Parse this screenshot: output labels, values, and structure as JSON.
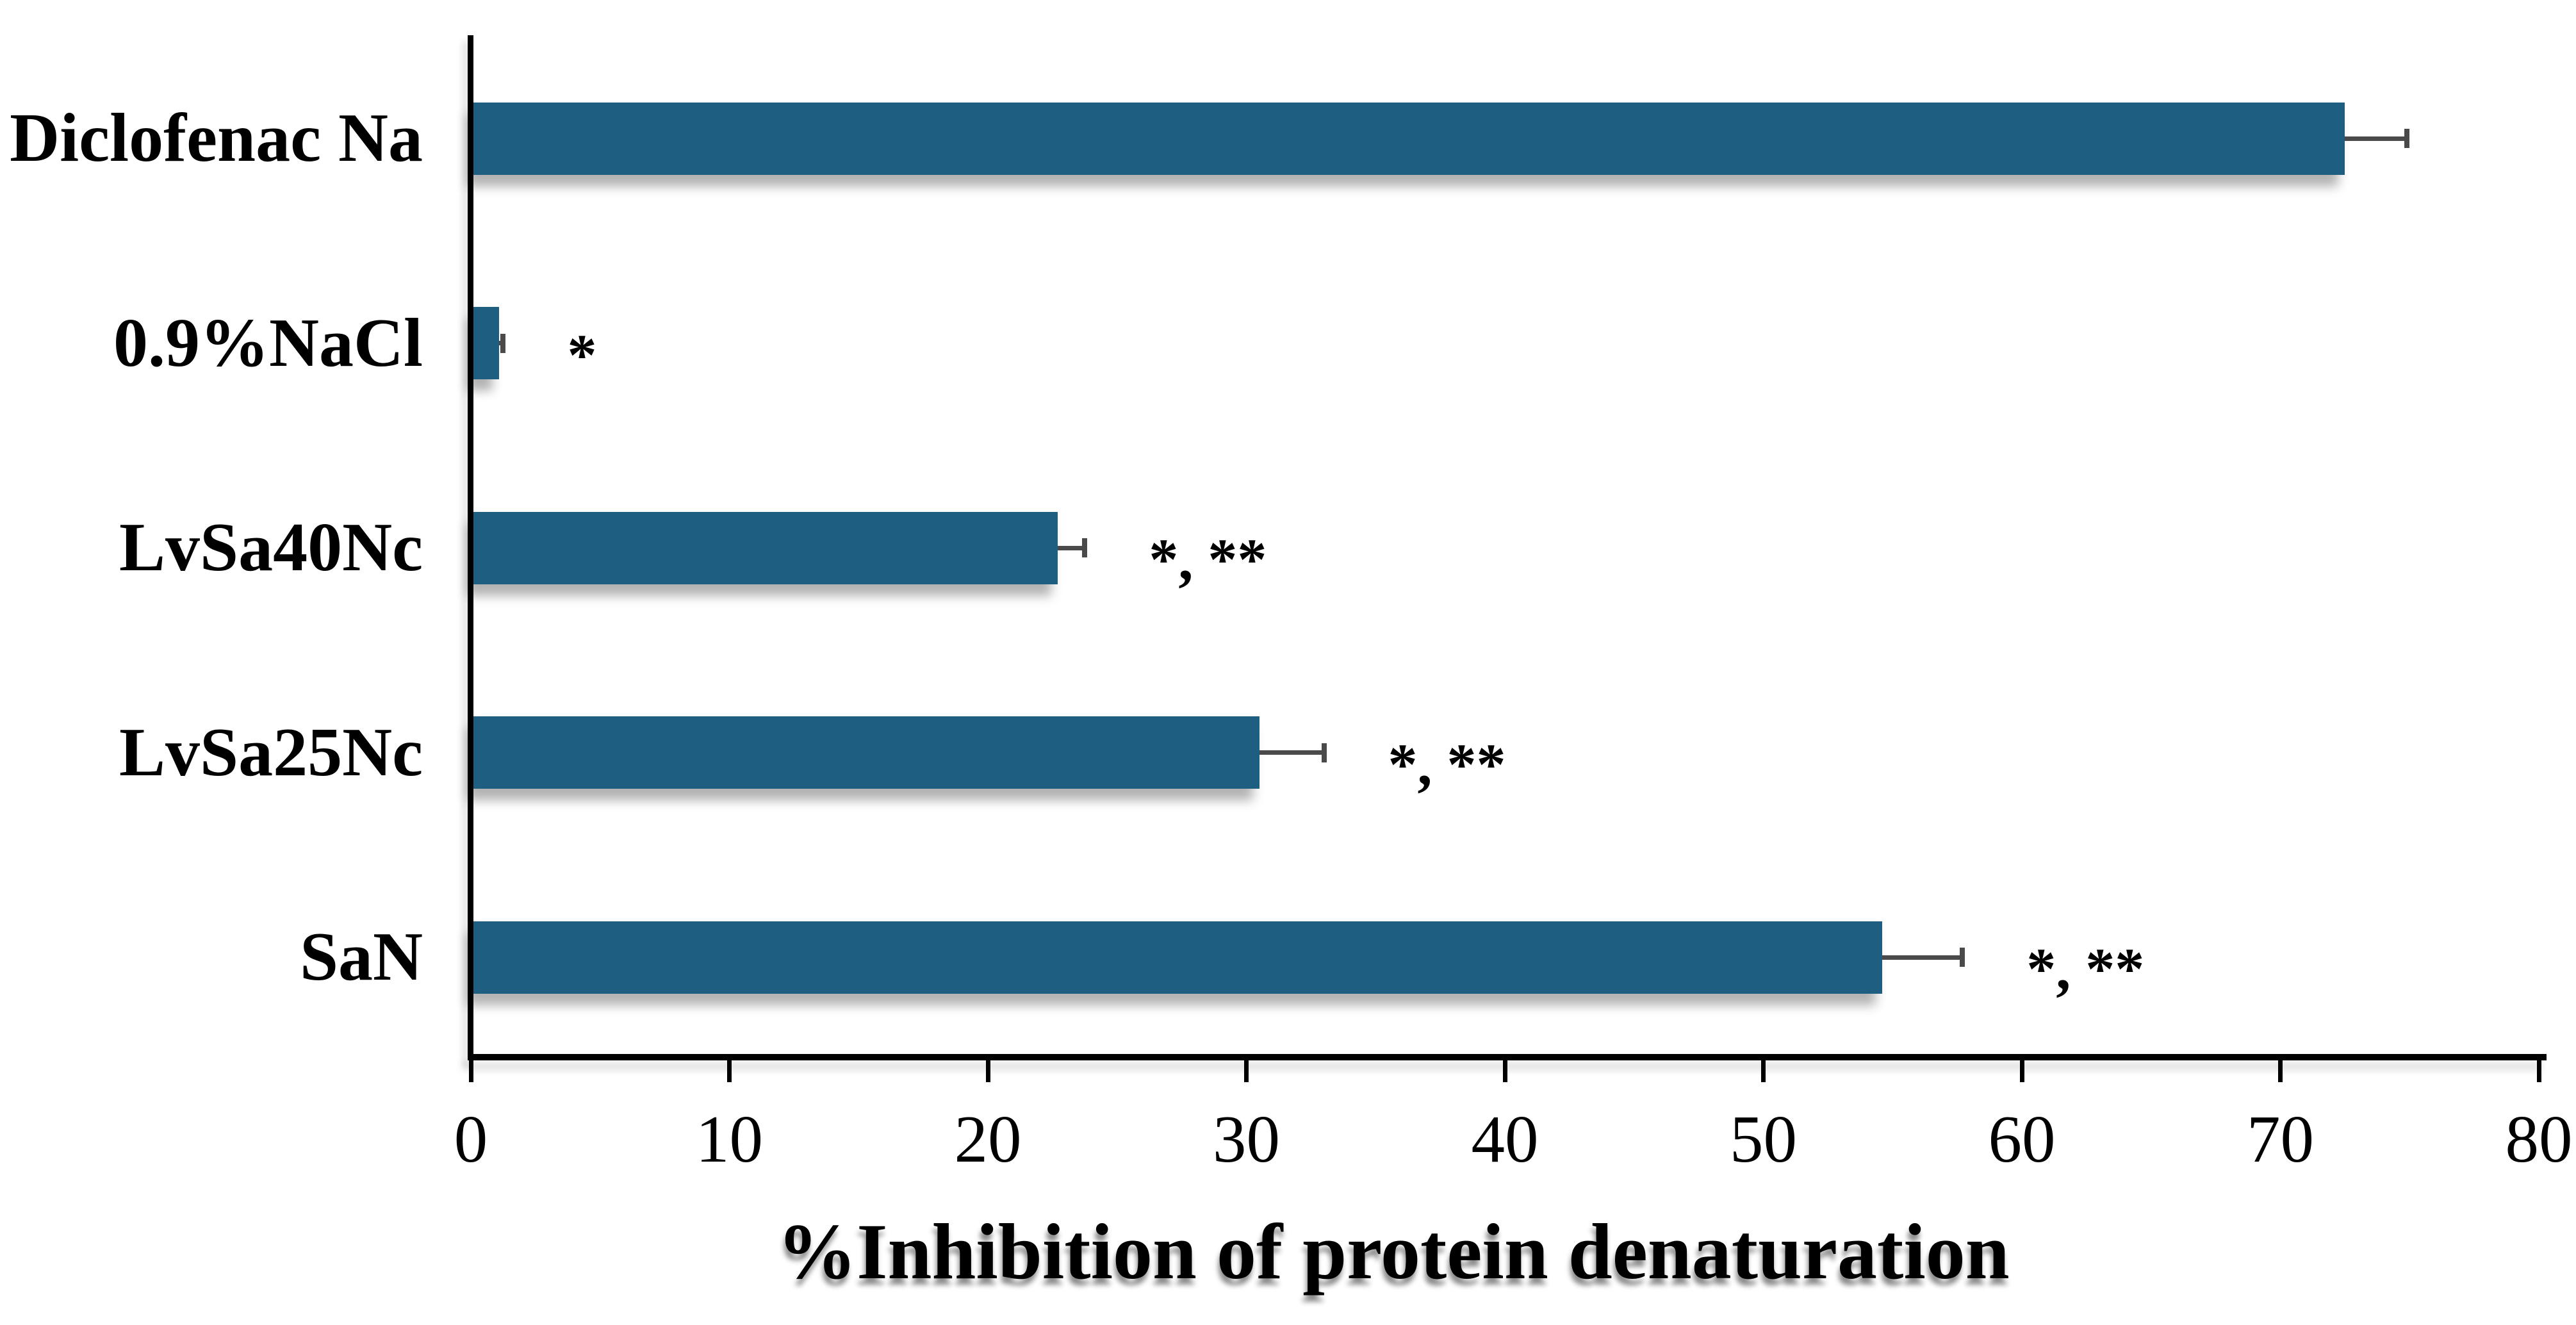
{
  "chart_data": {
    "type": "bar",
    "orientation": "horizontal",
    "xlabel": "%Inhibition of protein denaturation",
    "categories": [
      "Diclofenac Na",
      "0.9%NaCl",
      "LvSa40Nc",
      "LvSa25Nc",
      "SaN"
    ],
    "values": [
      72.5,
      1.1,
      22.7,
      30.5,
      54.6
    ],
    "errors": [
      2.4,
      0.15,
      1.05,
      2.5,
      3.1
    ],
    "annotations": [
      "",
      "*",
      "*, **",
      "*, **",
      "*, **"
    ],
    "xlim": [
      0,
      80
    ],
    "xticks": [
      0,
      10,
      20,
      30,
      40,
      50,
      60,
      70,
      80
    ],
    "grid": false,
    "bar_color": "#1E5F81",
    "error_bar_color": "#4A4A4A",
    "axis_color": "#000000"
  }
}
